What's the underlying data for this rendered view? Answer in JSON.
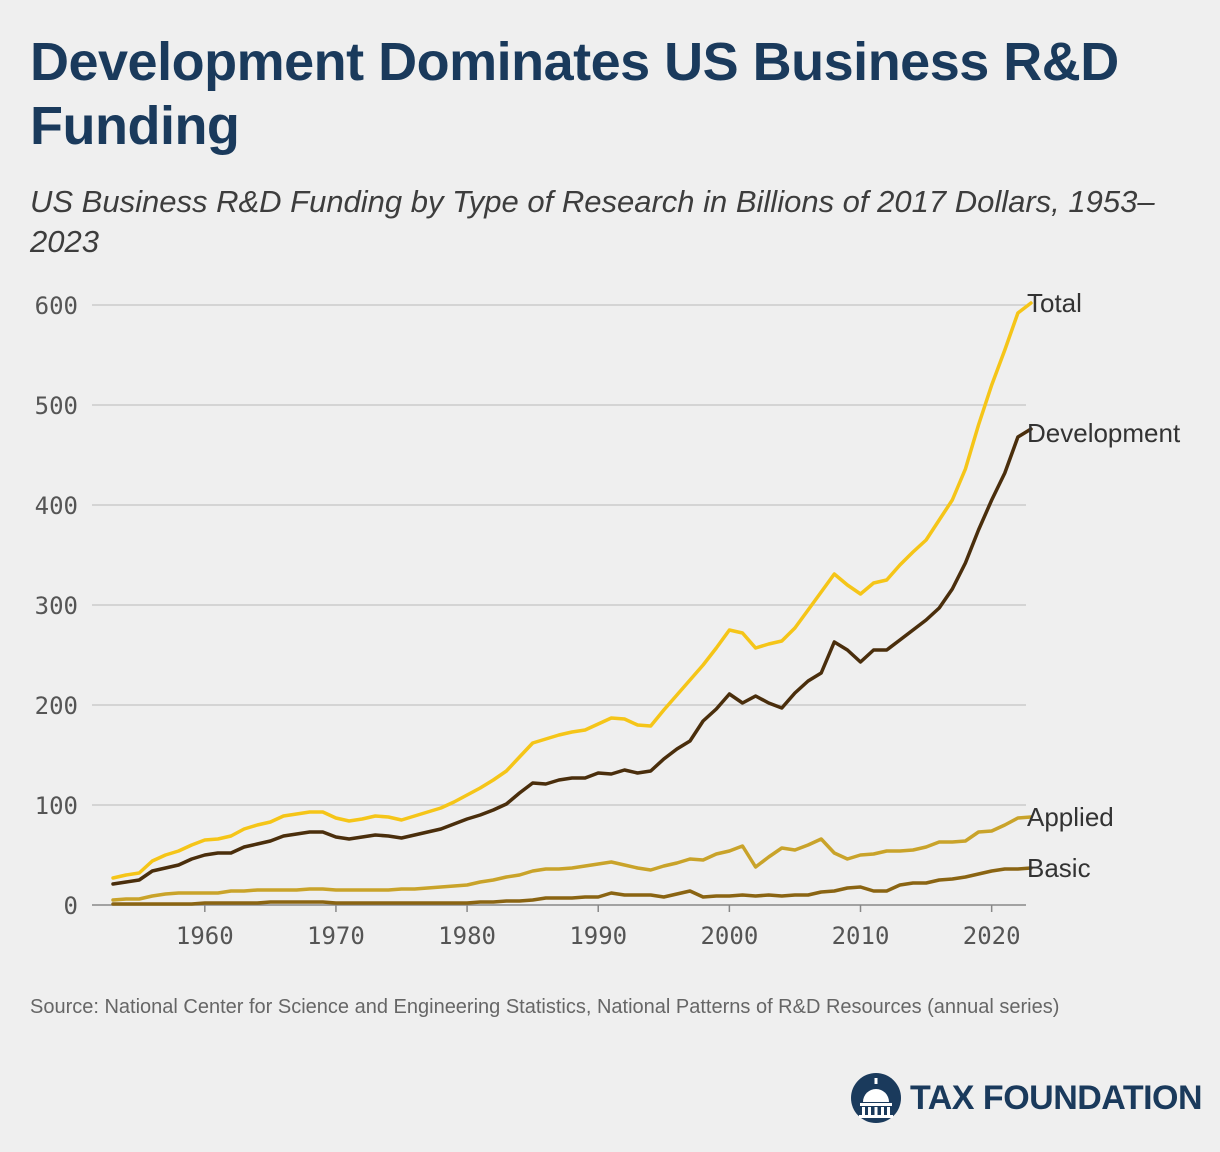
{
  "title": "Development Dominates US Business R&D Funding",
  "subtitle": "US Business R&D Funding by Type of Research in Billions of 2017 Dollars, 1953–2023",
  "source": "Source: National Center for Science and Engineering Statistics, National Patterns of R&D Resources (annual series)",
  "logo": {
    "text": "TAX FOUNDATION",
    "icon": "capitol-dome-icon"
  },
  "colors": {
    "title": "#1a3a5c",
    "total": "#f5c518",
    "development": "#4a2e0c",
    "applied": "#c9a32a",
    "basic": "#8a6412",
    "grid": "#cccccc",
    "background": "#efefef"
  },
  "chart_data": {
    "type": "line",
    "title": "",
    "xlabel": "",
    "ylabel": "",
    "xlim": [
      1953,
      2023
    ],
    "ylim": [
      0,
      600
    ],
    "grid": true,
    "x_ticks": [
      1960,
      1970,
      1980,
      1990,
      2000,
      2010,
      2020
    ],
    "y_ticks": [
      0,
      100,
      200,
      300,
      400,
      500,
      600
    ],
    "legend_position": "right, direct labels at line ends",
    "x": [
      1953,
      1954,
      1955,
      1956,
      1957,
      1958,
      1959,
      1960,
      1961,
      1962,
      1963,
      1964,
      1965,
      1966,
      1967,
      1968,
      1969,
      1970,
      1971,
      1972,
      1973,
      1974,
      1975,
      1976,
      1977,
      1978,
      1979,
      1980,
      1981,
      1982,
      1983,
      1984,
      1985,
      1986,
      1987,
      1988,
      1989,
      1990,
      1991,
      1992,
      1993,
      1994,
      1995,
      1996,
      1997,
      1998,
      1999,
      2000,
      2001,
      2002,
      2003,
      2004,
      2005,
      2006,
      2007,
      2008,
      2009,
      2010,
      2011,
      2012,
      2013,
      2014,
      2015,
      2016,
      2017,
      2018,
      2019,
      2020,
      2021,
      2022,
      2023
    ],
    "series": [
      {
        "name": "Total",
        "key": "total",
        "values": [
          27,
          30,
          32,
          44,
          50,
          54,
          60,
          65,
          66,
          69,
          76,
          80,
          83,
          89,
          91,
          93,
          93,
          87,
          84,
          86,
          89,
          88,
          85,
          89,
          93,
          97,
          103,
          110,
          117,
          125,
          134,
          148,
          162,
          166,
          170,
          173,
          175,
          181,
          187,
          186,
          180,
          179,
          195,
          210,
          225,
          240,
          257,
          275,
          272,
          257,
          261,
          264,
          277,
          295,
          313,
          331,
          320,
          311,
          322,
          325,
          340,
          353,
          365,
          385,
          405,
          436,
          480,
          520,
          555,
          592,
          602
        ]
      },
      {
        "name": "Development",
        "key": "development",
        "values": [
          21,
          23,
          25,
          34,
          37,
          40,
          46,
          50,
          52,
          52,
          58,
          61,
          64,
          69,
          71,
          73,
          73,
          68,
          66,
          68,
          70,
          69,
          67,
          70,
          73,
          76,
          81,
          86,
          90,
          95,
          101,
          112,
          122,
          121,
          125,
          127,
          127,
          132,
          131,
          135,
          132,
          134,
          146,
          156,
          164,
          184,
          196,
          211,
          202,
          209,
          202,
          197,
          212,
          224,
          232,
          263,
          255,
          243,
          255,
          255,
          265,
          275,
          285,
          297,
          316,
          342,
          375,
          405,
          432,
          468,
          476
        ]
      },
      {
        "name": "Applied",
        "key": "applied",
        "values": [
          5,
          6,
          6,
          9,
          11,
          12,
          12,
          12,
          12,
          14,
          14,
          15,
          15,
          15,
          15,
          16,
          16,
          15,
          15,
          15,
          15,
          15,
          16,
          16,
          17,
          18,
          19,
          20,
          23,
          25,
          28,
          30,
          34,
          36,
          36,
          37,
          39,
          41,
          43,
          40,
          37,
          35,
          39,
          42,
          46,
          45,
          51,
          54,
          59,
          38,
          48,
          57,
          55,
          60,
          66,
          52,
          46,
          50,
          51,
          54,
          54,
          55,
          58,
          63,
          63,
          64,
          73,
          74,
          80,
          87,
          88
        ]
      },
      {
        "name": "Basic",
        "key": "basic",
        "values": [
          1,
          1,
          1,
          1,
          1,
          1,
          1,
          2,
          2,
          2,
          2,
          2,
          3,
          3,
          3,
          3,
          3,
          2,
          2,
          2,
          2,
          2,
          2,
          2,
          2,
          2,
          2,
          2,
          3,
          3,
          4,
          4,
          5,
          7,
          7,
          7,
          8,
          8,
          12,
          10,
          10,
          10,
          8,
          11,
          14,
          8,
          9,
          9,
          10,
          9,
          10,
          9,
          10,
          10,
          13,
          14,
          17,
          18,
          14,
          14,
          20,
          22,
          22,
          25,
          26,
          28,
          31,
          34,
          36,
          36,
          37
        ]
      }
    ]
  }
}
